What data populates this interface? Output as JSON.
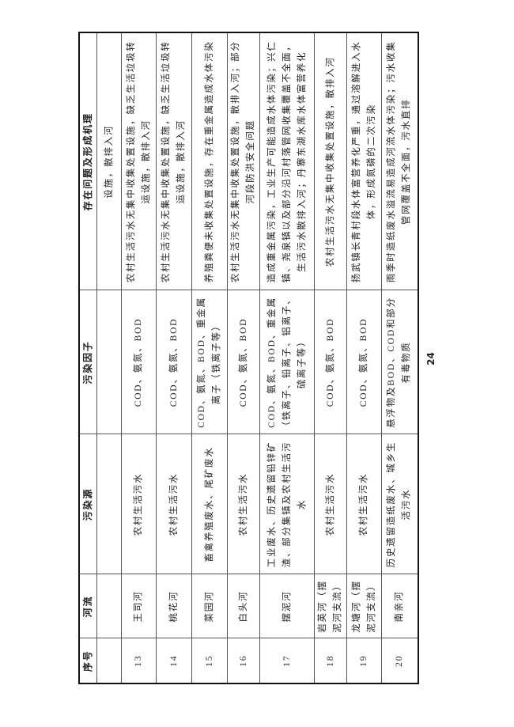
{
  "table": {
    "headers": [
      "序号",
      "河流",
      "污染源",
      "污染因子",
      "存在问题及形成机理"
    ],
    "rows": [
      {
        "no": "",
        "river": "",
        "source": "",
        "factors": "",
        "problem": "设施，散排入河"
      },
      {
        "no": "13",
        "river": "王司河",
        "source": "农村生活污水",
        "factors": "COD、氨氮、BOD",
        "problem": "农村生活污水无集中收集处置设施，缺乏生活垃圾转运设施，散排入河"
      },
      {
        "no": "14",
        "river": "桃花河",
        "source": "农村生活污水",
        "factors": "COD、氨氮、BOD",
        "problem": "农村生活污水无集中收集处置设施，缺乏生活垃圾转运设施，散排入河"
      },
      {
        "no": "15",
        "river": "菜园河",
        "source": "畜禽养殖废水、尾矿废水",
        "factors": "COD、氨氮、BOD、重金属离子（铁离子等）",
        "problem": "养殖粪便未收集处置设施，存在重金属造成水体污染"
      },
      {
        "no": "16",
        "river": "白头河",
        "source": "农村生活污水",
        "factors": "COD、氨氮、BOD",
        "problem": "农村生活污水无集中收集处置设施，散排入河；部分河段防洪安全问题"
      },
      {
        "no": "17",
        "river": "摆泥河",
        "source": "工业废水、历史遗留铅锌矿渣、部分集镇及农村生活污水",
        "factors": "COD、氨氮、BOD、重金属（铁离子、铅离子、铝离子、硫离子等）",
        "problem": "造成重金属污染，工业生产可能造成水体污染；兴仁镇、尧泉镇以及部分沿河村落管网收集覆盖不全面，生活污水散排入河；丹寨东湖水库水体富营养化"
      },
      {
        "no": "18",
        "river": "岩英河（摆泥河支流）",
        "source": "农村生活污水",
        "factors": "COD、氨氮、BOD",
        "problem": "农村生活污水无集中收集处置设施，散排入河"
      },
      {
        "no": "19",
        "river": "龙塘河（摆泥河支流）",
        "source": "农村生活污水",
        "factors": "COD、氨氮、BOD",
        "problem": "扬武镇长青村段水体富营养化严重，通过溶解进入水体，形成氮磷的二次污染"
      },
      {
        "no": "20",
        "river": "南亲河",
        "source": "历史遗留造纸废水、城乡生活污水",
        "factors": "悬浮物及BOD、COD和部分有毒物质",
        "problem": "雨季时造纸废水溢流易造成河流水体污染；污水收集管网覆盖不全面，污水直排"
      }
    ]
  },
  "page_number": "24"
}
